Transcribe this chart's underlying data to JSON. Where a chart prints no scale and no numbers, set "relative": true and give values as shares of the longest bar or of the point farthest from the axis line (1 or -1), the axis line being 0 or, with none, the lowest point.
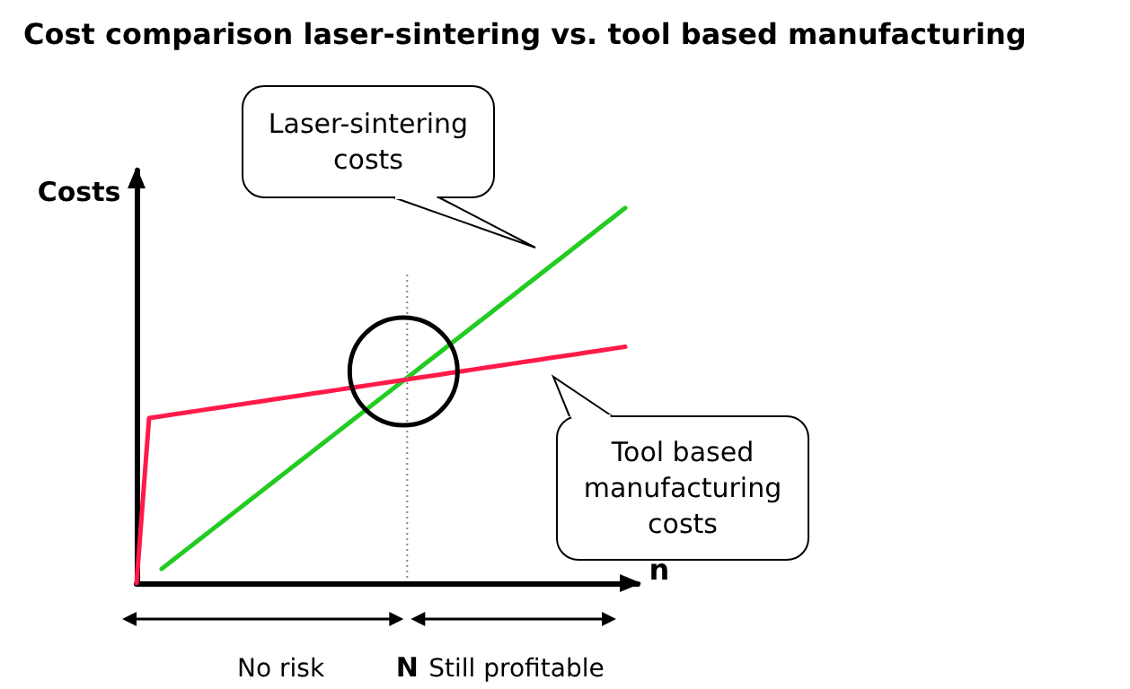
{
  "chart_data": {
    "type": "line",
    "title": "Cost comparison laser-sintering vs. tool based manufacturing",
    "xlabel": "n",
    "ylabel": "Costs",
    "relative": true,
    "grid": false,
    "marker": "none",
    "line_style": "solid",
    "categories": [
      null,
      null,
      null,
      null,
      null,
      null,
      null,
      null,
      null,
      null,
      null,
      null,
      null,
      null,
      null,
      null,
      null,
      null,
      null,
      null,
      null,
      null,
      null,
      null,
      null,
      null,
      null,
      null,
      null,
      null,
      null,
      null,
      null,
      null,
      null,
      null,
      null,
      null,
      null,
      null,
      null
    ],
    "series": [
      {
        "color": "#22cc22",
        "values": [
          null,
          null,
          0.038,
          0.064,
          0.09,
          0.116,
          0.142,
          0.168,
          0.194,
          0.22,
          0.246,
          0.272,
          0.298,
          0.324,
          0.35,
          0.376,
          0.402,
          0.428,
          0.454,
          0.48,
          0.506,
          0.532,
          0.558,
          0.584,
          0.61,
          0.636,
          0.662,
          0.688,
          0.714,
          0.74,
          0.766,
          0.792,
          0.818,
          0.844,
          0.87,
          0.896,
          0.922,
          0.948,
          0.974,
          1.0,
          null
        ]
      },
      {
        "color": "#ff1a4a",
        "values": [
          0,
          0.44,
          0.445,
          0.45,
          0.455,
          0.46,
          0.465,
          0.47,
          0.475,
          0.48,
          0.485,
          0.49,
          0.495,
          0.5,
          0.505,
          0.51,
          0.515,
          0.52,
          0.525,
          0.53,
          0.535,
          0.54,
          0.545,
          0.55,
          0.555,
          0.56,
          0.565,
          0.57,
          0.575,
          0.58,
          0.585,
          0.59,
          0.595,
          0.6,
          0.605,
          0.61,
          0.615,
          0.62,
          0.625,
          0.63,
          null
        ]
      }
    ],
    "annotations": [
      "Laser-sintering costs",
      "Tool based manufacturing costs",
      "No risk",
      "N",
      "Still profitable"
    ]
  }
}
